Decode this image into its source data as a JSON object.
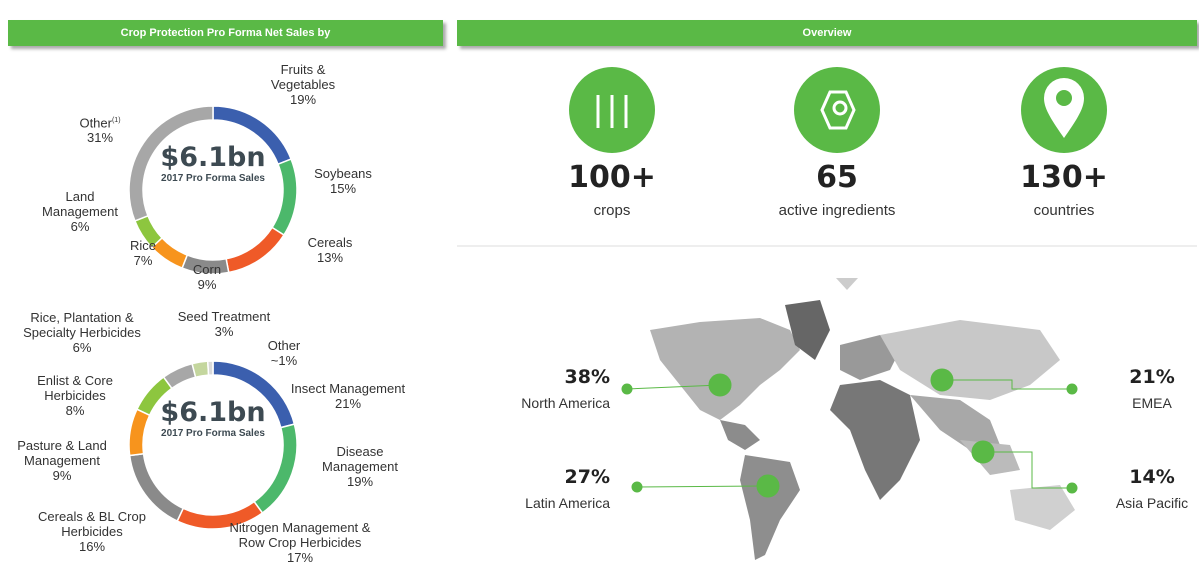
{
  "chart_data": [
    {
      "type": "pie",
      "donut": true,
      "title": "Crop Protection Pro Forma Net Sales by",
      "center_label": "$6.1bn",
      "center_sublabel": "2017 Pro Forma Sales",
      "categories": [
        "Fruits & Vegetables",
        "Soybeans",
        "Cereals",
        "Corn",
        "Rice",
        "Land Management",
        "Other"
      ],
      "other_footnote": "(1)",
      "values": [
        19,
        15,
        13,
        9,
        7,
        6,
        31
      ],
      "value_labels": [
        "19%",
        "15%",
        "13%",
        "9%",
        "7%",
        "6%",
        "31%"
      ],
      "colors": [
        "#3b5fae",
        "#4cb86b",
        "#ef5a28",
        "#8a8a8a",
        "#f7941d",
        "#8dc63f",
        "#a7a7a7"
      ]
    },
    {
      "type": "pie",
      "donut": true,
      "center_label": "$6.1bn",
      "center_sublabel": "2017 Pro Forma Sales",
      "categories": [
        "Insect Management",
        "Disease Management",
        "Nitrogen Management & Row Crop Herbicides",
        "Cereals & BL Crop Herbicides",
        "Pasture & Land Management",
        "Enlist & Core Herbicides",
        "Rice, Plantation & Specialty Herbicides",
        "Seed Treatment",
        "Other"
      ],
      "values": [
        21,
        19,
        17,
        16,
        9,
        8,
        6,
        3,
        1
      ],
      "value_labels": [
        "21%",
        "19%",
        "17%",
        "16%",
        "9%",
        "8%",
        "6%",
        "3%",
        "~1%"
      ],
      "colors": [
        "#3b5fae",
        "#4cb86b",
        "#ef5a28",
        "#8a8a8a",
        "#f7941d",
        "#8dc63f",
        "#a7a7a7",
        "#c4d69e",
        "#d9d9d9"
      ]
    }
  ],
  "overview": {
    "title": "Overview",
    "stats": [
      {
        "value": "100+",
        "label": "crops"
      },
      {
        "value": "65",
        "label": "active ingredients"
      },
      {
        "value": "130+",
        "label": "countries"
      }
    ]
  },
  "regions": [
    {
      "value": "38%",
      "name": "North America"
    },
    {
      "value": "21%",
      "name": "EMEA"
    },
    {
      "value": "27%",
      "name": "Latin America"
    },
    {
      "value": "14%",
      "name": "Asia Pacific"
    }
  ]
}
